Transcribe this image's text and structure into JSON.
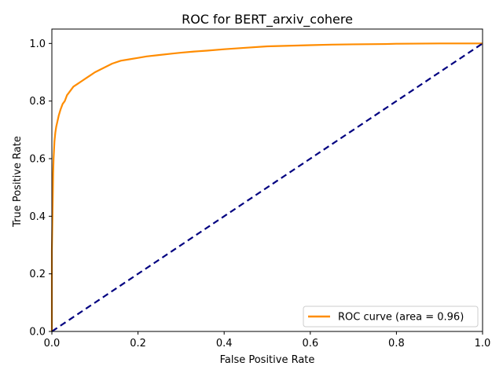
{
  "chart_data": {
    "type": "line",
    "title": "ROC for BERT_arxiv_cohere",
    "xlabel": "False Positive Rate",
    "ylabel": "True Positive Rate",
    "xlim": [
      0.0,
      1.0
    ],
    "ylim": [
      0.0,
      1.05
    ],
    "xticks": [
      "0.0",
      "0.2",
      "0.4",
      "0.6",
      "0.8",
      "1.0"
    ],
    "yticks": [
      "0.0",
      "0.2",
      "0.4",
      "0.6",
      "0.8",
      "1.0"
    ],
    "grid": false,
    "legend_placement": "lower-right",
    "series": [
      {
        "name": "ROC curve (area = 0.96)",
        "color": "#ff8c00",
        "style": "solid",
        "x": [
          0.0,
          0.0,
          0.0,
          0.002,
          0.003,
          0.004,
          0.005,
          0.006,
          0.008,
          0.01,
          0.013,
          0.016,
          0.02,
          0.025,
          0.03,
          0.035,
          0.04,
          0.05,
          0.06,
          0.07,
          0.08,
          0.09,
          0.1,
          0.12,
          0.14,
          0.16,
          0.18,
          0.2,
          0.22,
          0.25,
          0.28,
          0.3,
          0.33,
          0.36,
          0.4,
          0.45,
          0.5,
          0.55,
          0.6,
          0.65,
          0.7,
          0.775,
          0.8,
          0.9,
          1.0
        ],
        "y": [
          0.0,
          0.1,
          0.28,
          0.45,
          0.55,
          0.6,
          0.63,
          0.66,
          0.69,
          0.71,
          0.73,
          0.75,
          0.77,
          0.79,
          0.8,
          0.82,
          0.83,
          0.85,
          0.86,
          0.87,
          0.88,
          0.89,
          0.9,
          0.915,
          0.93,
          0.94,
          0.945,
          0.95,
          0.955,
          0.96,
          0.965,
          0.968,
          0.972,
          0.975,
          0.98,
          0.985,
          0.99,
          0.992,
          0.994,
          0.996,
          0.997,
          0.998,
          0.999,
          1.0,
          1.0
        ]
      },
      {
        "name": "",
        "color": "#000080",
        "style": "dashed",
        "x": [
          0.0,
          1.0
        ],
        "y": [
          0.0,
          1.0
        ]
      }
    ]
  }
}
